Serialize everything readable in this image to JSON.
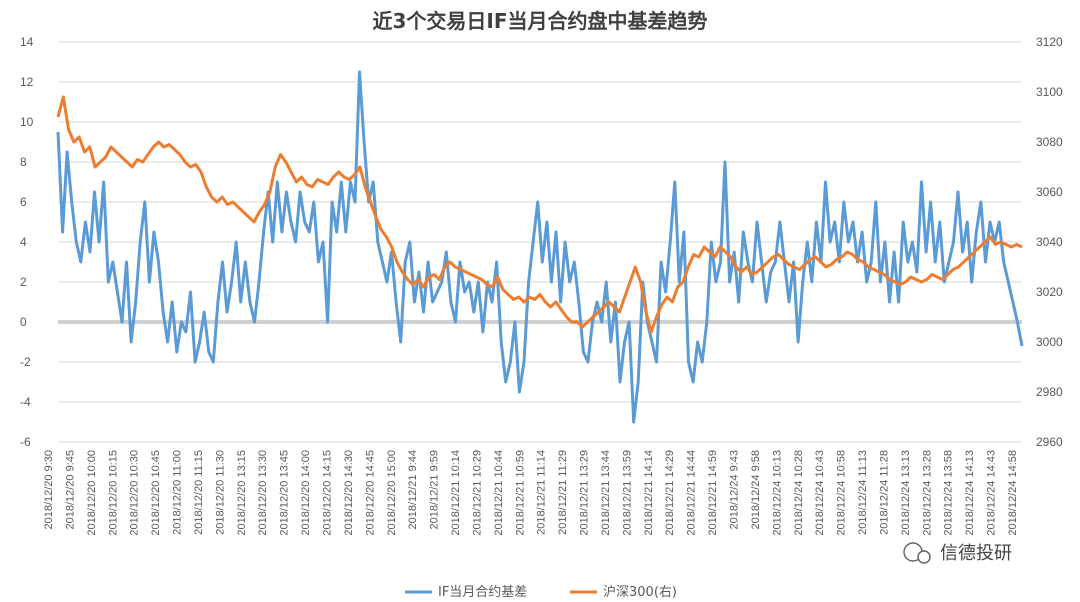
{
  "chart_data": {
    "type": "line",
    "title": "近3个交易日IF当月合约盘中基差趋势",
    "y_left": {
      "min": -6,
      "max": 14,
      "step": 2,
      "ticks": [
        "-6",
        "-4",
        "-2",
        "0",
        "2",
        "4",
        "6",
        "8",
        "10",
        "12",
        "14"
      ]
    },
    "y_right": {
      "min": 2960,
      "max": 3120,
      "step": 20,
      "ticks": [
        "2960",
        "2980",
        "3000",
        "3020",
        "3040",
        "3060",
        "3080",
        "3100",
        "3120"
      ]
    },
    "x_labels": [
      "2018/12/20 9:30",
      "2018/12/20 9:45",
      "2018/12/20 10:00",
      "2018/12/20 10:15",
      "2018/12/20 10:30",
      "2018/12/20 10:45",
      "2018/12/20 11:00",
      "2018/12/20 11:15",
      "2018/12/20 11:30",
      "2018/12/20 13:15",
      "2018/12/20 13:30",
      "2018/12/20 13:45",
      "2018/12/20 14:00",
      "2018/12/20 14:15",
      "2018/12/20 14:30",
      "2018/12/20 14:45",
      "2018/12/20 15:00",
      "2018/12/21 9:44",
      "2018/12/21 9:59",
      "2018/12/21 10:14",
      "2018/12/21 10:29",
      "2018/12/21 10:44",
      "2018/12/21 10:59",
      "2018/12/21 11:14",
      "2018/12/21 11:29",
      "2018/12/21 13:29",
      "2018/12/21 13:44",
      "2018/12/21 13:59",
      "2018/12/21 14:14",
      "2018/12/21 14:29",
      "2018/12/21 14:44",
      "2018/12/21 14:59",
      "2018/12/24 9:43",
      "2018/12/24 9:58",
      "2018/12/24 10:13",
      "2018/12/24 10:28",
      "2018/12/24 10:43",
      "2018/12/24 10:58",
      "2018/12/24 11:13",
      "2018/12/24 11:28",
      "2018/12/24 13:13",
      "2018/12/24 13:28",
      "2018/12/24 13:58",
      "2018/12/24 14:13",
      "2018/12/24 14:43",
      "2018/12/24 14:58"
    ],
    "series": [
      {
        "name": "IF当月合约基差",
        "axis": "left",
        "color": "#5b9bd5",
        "values": [
          9.5,
          4.5,
          8.5,
          6,
          4,
          3,
          5,
          3.5,
          6.5,
          4,
          7,
          2,
          3,
          1.5,
          0,
          3,
          -1,
          1,
          4,
          6,
          2,
          4.5,
          3,
          0.5,
          -1,
          1,
          -1.5,
          0,
          -0.5,
          1.5,
          -2,
          -1,
          0.5,
          -1.5,
          -2,
          1,
          3,
          0.5,
          2,
          4,
          1,
          3,
          1,
          0,
          2,
          4.5,
          6.5,
          4,
          7,
          4.5,
          6.5,
          5,
          4,
          6.5,
          5,
          4.5,
          6,
          3,
          4,
          0,
          6,
          4.5,
          7,
          4.5,
          7,
          6,
          12.5,
          9,
          6,
          7,
          4,
          3,
          2,
          3.5,
          1,
          -1,
          3,
          4,
          1,
          2.5,
          0.5,
          3,
          1,
          1.5,
          2,
          3.5,
          1,
          0,
          3,
          1.5,
          2,
          0.5,
          2,
          -0.5,
          2,
          1,
          3,
          -1,
          -3,
          -2,
          0,
          -3.5,
          -2,
          2,
          4,
          6,
          3,
          5,
          2,
          4.5,
          1,
          4,
          2,
          3,
          1,
          -1.5,
          -2,
          0,
          1,
          0,
          2,
          -1,
          1,
          -3,
          -1,
          0,
          -5,
          -3,
          2,
          0,
          -1,
          -2,
          3,
          1.5,
          4,
          7,
          2,
          4.5,
          -2,
          -3,
          -1,
          -2,
          0,
          4,
          2,
          3,
          8,
          2,
          3.5,
          1,
          4.5,
          3,
          2,
          5,
          3,
          1,
          2.5,
          3,
          5,
          3,
          1,
          3,
          -1,
          2,
          4,
          2,
          5,
          3,
          7,
          4,
          5,
          3,
          6,
          4,
          5,
          3,
          4.5,
          2,
          3,
          6,
          2,
          4,
          1,
          3.5,
          1,
          5,
          3,
          4,
          2.5,
          7,
          3.5,
          6,
          3,
          5,
          2,
          3,
          4,
          6.5,
          3.5,
          5,
          2,
          4.5,
          6,
          3,
          5,
          4,
          5,
          3,
          2,
          1,
          0,
          -1.2
        ]
      },
      {
        "name": "沪深300(右)",
        "axis": "right",
        "color": "#ed7d31",
        "values": [
          3090,
          3098,
          3085,
          3080,
          3082,
          3076,
          3078,
          3070,
          3072,
          3074,
          3078,
          3076,
          3074,
          3072,
          3070,
          3073,
          3072,
          3075,
          3078,
          3080,
          3078,
          3079,
          3077,
          3075,
          3072,
          3070,
          3071,
          3068,
          3062,
          3058,
          3056,
          3058,
          3055,
          3056,
          3054,
          3052,
          3050,
          3048,
          3052,
          3055,
          3060,
          3070,
          3075,
          3072,
          3068,
          3064,
          3066,
          3063,
          3062,
          3065,
          3064,
          3063,
          3066,
          3068,
          3066,
          3065,
          3067,
          3070,
          3062,
          3056,
          3050,
          3045,
          3042,
          3038,
          3032,
          3028,
          3025,
          3023,
          3025,
          3022,
          3026,
          3027,
          3025,
          3030,
          3032,
          3030,
          3029,
          3028,
          3027,
          3026,
          3025,
          3023,
          3022,
          3026,
          3021,
          3019,
          3017,
          3018,
          3016,
          3018,
          3017,
          3019,
          3016,
          3014,
          3016,
          3013,
          3010,
          3008,
          3008,
          3006,
          3008,
          3010,
          3012,
          3014,
          3016,
          3014,
          3012,
          3018,
          3024,
          3030,
          3024,
          3012,
          3004,
          3010,
          3015,
          3018,
          3016,
          3022,
          3024,
          3030,
          3035,
          3034,
          3038,
          3036,
          3034,
          3038,
          3036,
          3034,
          3030,
          3028,
          3030,
          3027,
          3028,
          3030,
          3032,
          3034,
          3035,
          3033,
          3031,
          3030,
          3029,
          3031,
          3033,
          3034,
          3032,
          3030,
          3031,
          3033,
          3034,
          3036,
          3035,
          3033,
          3032,
          3030,
          3029,
          3028,
          3027,
          3025,
          3024,
          3023,
          3024,
          3026,
          3025,
          3024,
          3025,
          3027,
          3026,
          3025,
          3027,
          3029,
          3030,
          3032,
          3034,
          3036,
          3038,
          3040,
          3042,
          3039,
          3040,
          3039,
          3038,
          3039,
          3038
        ]
      }
    ],
    "zero_line": true,
    "grid": "horizontal",
    "legend": "bottom"
  },
  "watermark": "信德投研"
}
